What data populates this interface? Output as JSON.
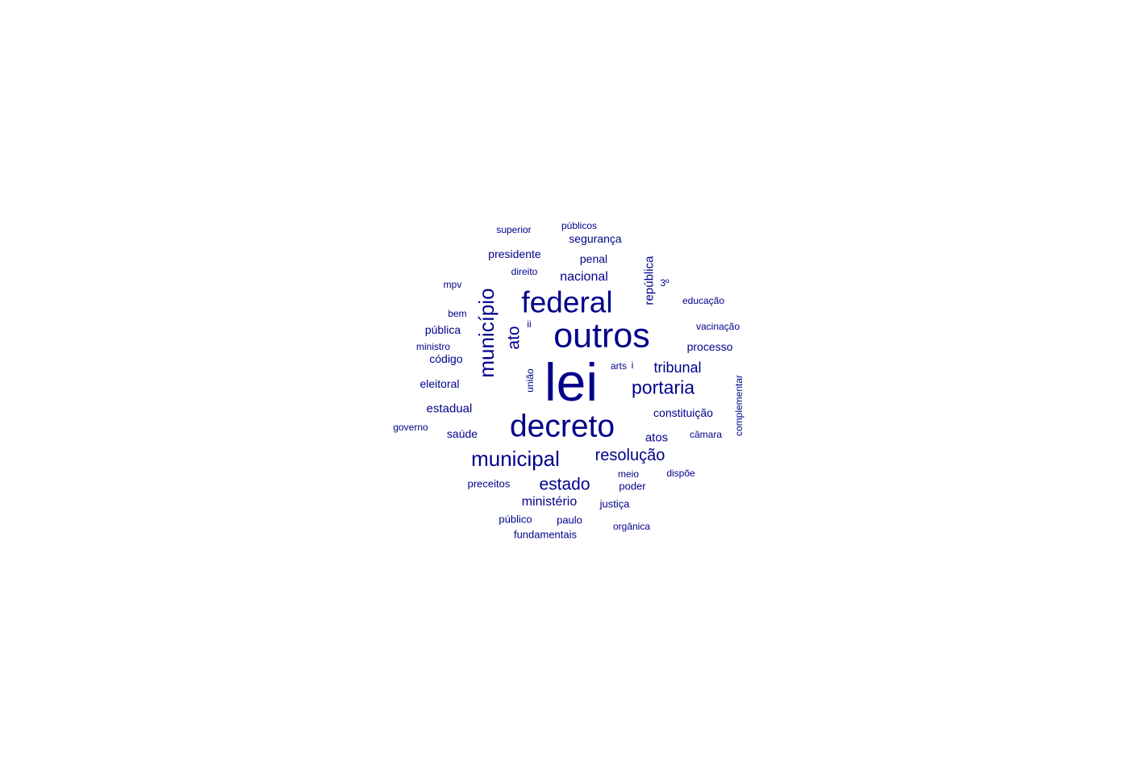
{
  "word_cloud": {
    "color": "#00008B",
    "words": [
      {
        "text": "lei"
      },
      {
        "text": "outros"
      },
      {
        "text": "decreto"
      },
      {
        "text": "federal"
      },
      {
        "text": "município"
      },
      {
        "text": "municipal"
      },
      {
        "text": "portaria"
      },
      {
        "text": "resolução"
      },
      {
        "text": "estado"
      },
      {
        "text": "ato"
      },
      {
        "text": "tribunal"
      },
      {
        "text": "nacional"
      },
      {
        "text": "ministério"
      },
      {
        "text": "república"
      },
      {
        "text": "estadual"
      },
      {
        "text": "segurança"
      },
      {
        "text": "presidente"
      },
      {
        "text": "penal"
      },
      {
        "text": "pública"
      },
      {
        "text": "código"
      },
      {
        "text": "eleitoral"
      },
      {
        "text": "saúde"
      },
      {
        "text": "constituição"
      },
      {
        "text": "processo"
      },
      {
        "text": "atos"
      },
      {
        "text": "preceitos"
      },
      {
        "text": "poder"
      },
      {
        "text": "justiça"
      },
      {
        "text": "público"
      },
      {
        "text": "paulo"
      },
      {
        "text": "fundamentais"
      },
      {
        "text": "superior"
      },
      {
        "text": "públicos"
      },
      {
        "text": "direito"
      },
      {
        "text": "mpv"
      },
      {
        "text": "3º"
      },
      {
        "text": "educação"
      },
      {
        "text": "bem"
      },
      {
        "text": "vacinação"
      },
      {
        "text": "ministro"
      },
      {
        "text": "ii"
      },
      {
        "text": "arts"
      },
      {
        "text": "i"
      },
      {
        "text": "união"
      },
      {
        "text": "complementar"
      },
      {
        "text": "governo"
      },
      {
        "text": "câmara"
      },
      {
        "text": "meio"
      },
      {
        "text": "dispõe"
      },
      {
        "text": "orgânica"
      }
    ]
  }
}
